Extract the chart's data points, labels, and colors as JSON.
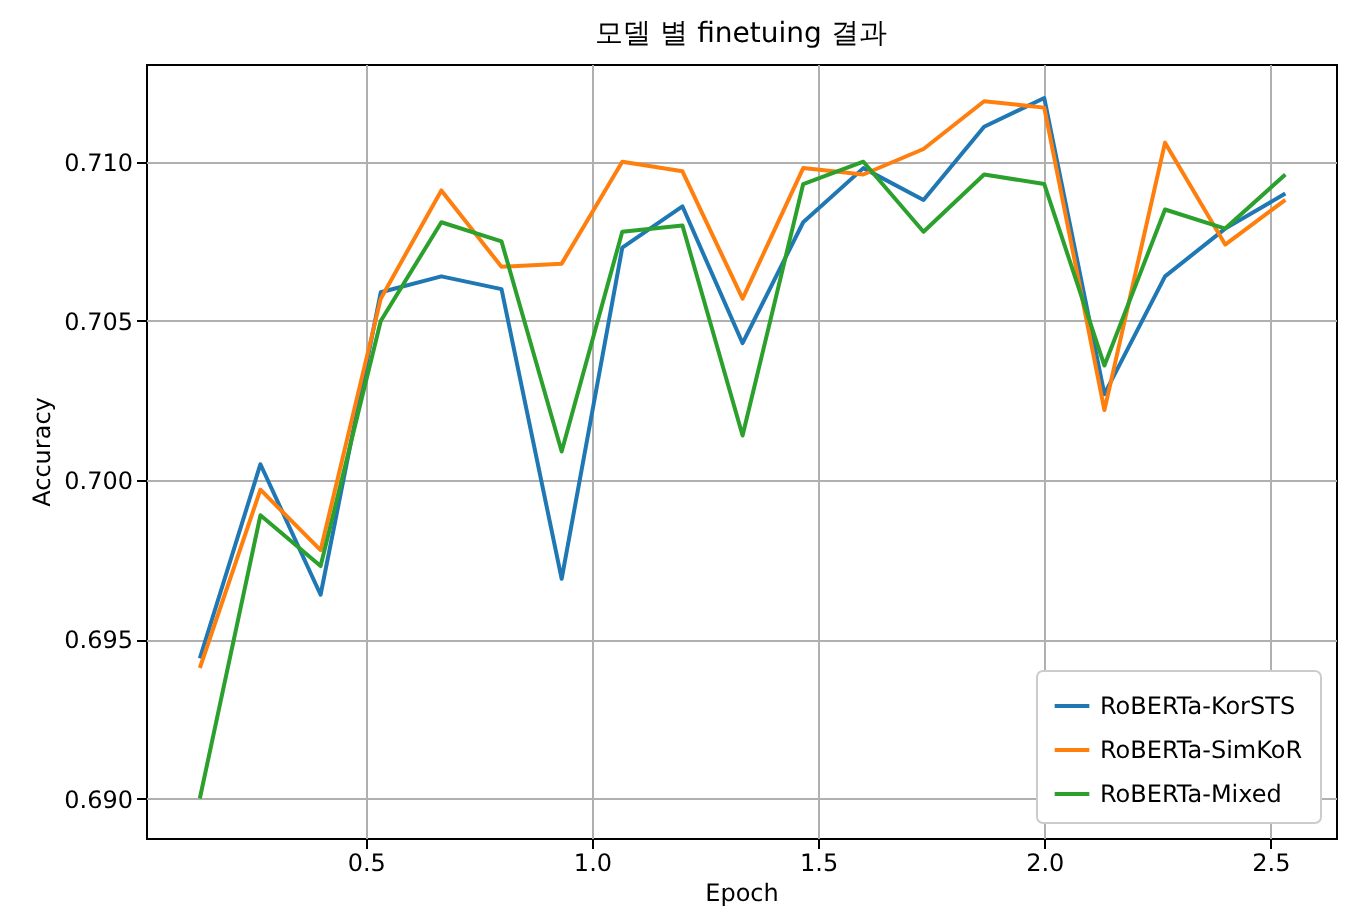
{
  "chart_data": {
    "type": "line",
    "title": "모델 별 finetuing 결과",
    "xlabel": "Epoch",
    "ylabel": "Accuracy",
    "x": [
      0.133,
      0.267,
      0.4,
      0.533,
      0.667,
      0.8,
      0.933,
      1.067,
      1.2,
      1.333,
      1.467,
      1.6,
      1.733,
      1.867,
      2.0,
      2.133,
      2.267,
      2.4,
      2.533
    ],
    "series": [
      {
        "name": "RoBERTa-KorSTS",
        "color": "#1f77b4",
        "values": [
          0.6944,
          0.7005,
          0.6964,
          0.7059,
          0.7064,
          0.706,
          0.6969,
          0.7073,
          0.7086,
          0.7043,
          0.7081,
          0.7098,
          0.7088,
          0.7111,
          0.712,
          0.7027,
          0.7064,
          0.7079,
          0.709
        ]
      },
      {
        "name": "RoBERTa-SimKoR",
        "color": "#ff7f0e",
        "values": [
          0.6941,
          0.6997,
          0.6978,
          0.7057,
          0.7091,
          0.7067,
          0.7068,
          0.71,
          0.7097,
          0.7057,
          0.7098,
          0.7096,
          0.7104,
          0.7119,
          0.7117,
          0.7022,
          0.7106,
          0.7074,
          0.7088
        ]
      },
      {
        "name": "RoBERTa-Mixed",
        "color": "#2ca02c",
        "values": [
          0.69,
          0.6989,
          0.6973,
          0.705,
          0.7081,
          0.7075,
          0.7009,
          0.7078,
          0.708,
          0.7014,
          0.7093,
          0.71,
          0.7078,
          0.7096,
          0.7093,
          0.7036,
          0.7085,
          0.7079,
          0.7096
        ]
      }
    ],
    "xlim": [
      0.014,
      2.645
    ],
    "xticks": [
      {
        "value": 0.5,
        "label": "0.5"
      },
      {
        "value": 1,
        "label": "1.0"
      },
      {
        "value": 1.5,
        "label": "1.5"
      },
      {
        "value": 2,
        "label": "2.0"
      },
      {
        "value": 2.5,
        "label": "2.5"
      }
    ],
    "ylim": [
      0.68876,
      0.71307
    ],
    "yticks": [
      {
        "value": 0.69,
        "label": "0.690"
      },
      {
        "value": 0.695,
        "label": "0.695"
      },
      {
        "value": 0.7,
        "label": "0.700"
      },
      {
        "value": 0.705,
        "label": "0.705"
      },
      {
        "value": 0.71,
        "label": "0.710"
      }
    ],
    "grid": true,
    "legend": "bottom right",
    "marker": "none",
    "line_style": "solid"
  }
}
